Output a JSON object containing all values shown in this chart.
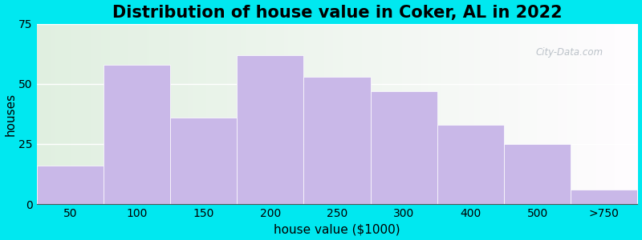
{
  "categories": [
    "50",
    "100",
    "150",
    "200",
    "250",
    "300",
    "400",
    "500",
    ">750"
  ],
  "values": [
    16,
    58,
    36,
    62,
    53,
    47,
    33,
    25,
    6
  ],
  "bar_color": "#c9b8e8",
  "bar_edge_color": "#ffffff",
  "title": "Distribution of house value in Coker, AL in 2022",
  "xlabel": "house value ($1000)",
  "ylabel": "houses",
  "ylim": [
    0,
    75
  ],
  "yticks": [
    0,
    25,
    50,
    75
  ],
  "background_color": "#00e8f0",
  "title_fontsize": 15,
  "axis_label_fontsize": 11,
  "tick_fontsize": 10,
  "watermark": "City-Data.com"
}
